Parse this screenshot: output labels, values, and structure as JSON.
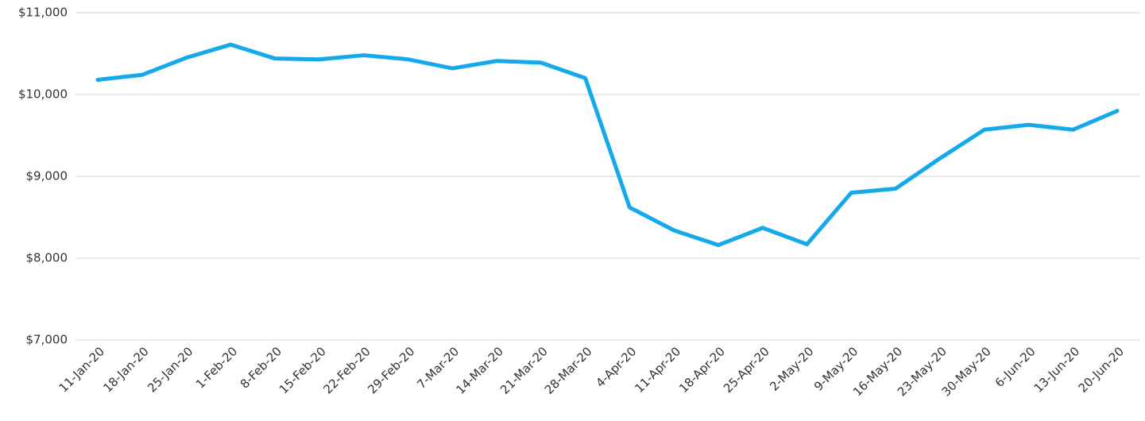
{
  "chart_data": {
    "type": "line",
    "categories": [
      "11-Jan-20",
      "18-Jan-20",
      "25-Jan-20",
      "1-Feb-20",
      "8-Feb-20",
      "15-Feb-20",
      "22-Feb-20",
      "29-Feb-20",
      "7-Mar-20",
      "14-Mar-20",
      "21-Mar-20",
      "28-Mar-20",
      "4-Apr-20",
      "11-Apr-20",
      "18-Apr-20",
      "25-Apr-20",
      "2-May-20",
      "9-May-20",
      "16-May-20",
      "23-May-20",
      "30-May-20",
      "6-Jun-20",
      "13-Jun-20",
      "20-Jun-20"
    ],
    "values": [
      10180,
      10240,
      10450,
      10610,
      10440,
      10430,
      10480,
      10430,
      10320,
      10410,
      10390,
      10200,
      8620,
      8340,
      8160,
      8370,
      8170,
      8800,
      8850,
      9220,
      9570,
      9630,
      9570,
      9800
    ],
    "color": "#14a9ea",
    "ylim": [
      7000,
      11000
    ],
    "yticks": [
      {
        "value": 7000,
        "label": "$7,000"
      },
      {
        "value": 8000,
        "label": "$8,000"
      },
      {
        "value": 9000,
        "label": "$9,000"
      },
      {
        "value": 10000,
        "label": "$10,000"
      },
      {
        "value": 11000,
        "label": "$11,000"
      }
    ],
    "grid": true
  }
}
